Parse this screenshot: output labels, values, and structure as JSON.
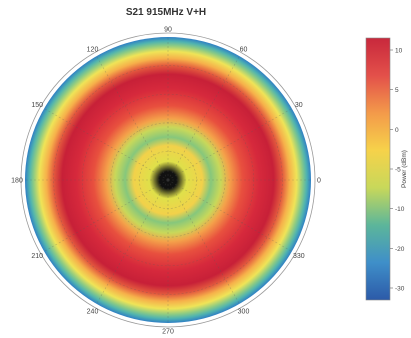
{
  "chart_data": {
    "type": "heatmap",
    "subtype": "polar",
    "title": "S21 915MHz V+H",
    "angular_unit": "degrees",
    "angular_ticks": [
      "0",
      "30",
      "60",
      "90",
      "120",
      "150",
      "180",
      "210",
      "240",
      "270",
      "300",
      "330"
    ],
    "rings": [
      {
        "r": 0.06,
        "value": -20,
        "color": "#111111"
      },
      {
        "r": 0.13,
        "value": 6,
        "color": "#dfe04a"
      },
      {
        "r": 0.24,
        "value": 9,
        "color": "#f2d14a"
      },
      {
        "r": 0.3,
        "value": 2,
        "color": "#86c77c"
      },
      {
        "r": 0.37,
        "value": 5,
        "color": "#c8d85a"
      },
      {
        "r": 0.43,
        "value": 8,
        "color": "#f4a24a"
      },
      {
        "r": 0.52,
        "value": 10,
        "color": "#e8503e"
      },
      {
        "r": 0.64,
        "value": 11,
        "color": "#d6293c"
      },
      {
        "r": 0.74,
        "value": 12,
        "color": "#c72038"
      },
      {
        "r": 0.8,
        "value": 9,
        "color": "#e3593e"
      },
      {
        "r": 0.85,
        "value": 7,
        "color": "#f6b04a"
      },
      {
        "r": 0.9,
        "value": 4,
        "color": "#efe457"
      },
      {
        "r": 0.94,
        "value": 1,
        "color": "#8dcb83"
      },
      {
        "r": 0.97,
        "value": -3,
        "color": "#4fb3b0"
      },
      {
        "r": 1.0,
        "value": -8,
        "color": "#2f7fc4"
      }
    ],
    "colorbar": {
      "label": "Power (dBm)",
      "ticks": [
        "10",
        "5",
        "0",
        "-5",
        "-10",
        "-20",
        "-30"
      ],
      "colors": [
        "#c8283c",
        "#e3504a",
        "#f39a4a",
        "#f6d24a",
        "#c8d85a",
        "#5cb69a",
        "#3f8fc9",
        "#2c5aa8"
      ]
    }
  }
}
